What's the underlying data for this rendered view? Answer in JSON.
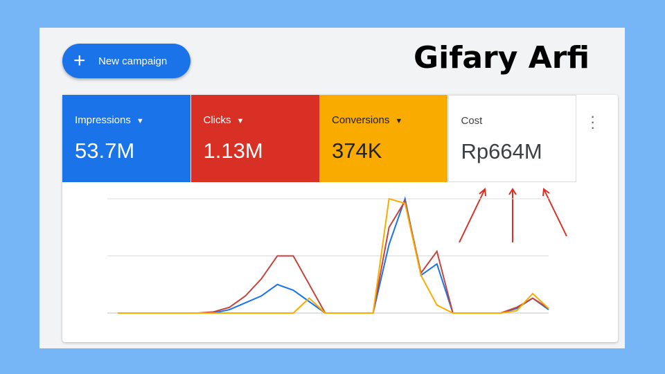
{
  "button": "New campaign",
  "title": "Gifary Arfi",
  "cards": [
    {
      "label": "Impressions",
      "value": "53.7M",
      "color": "#1a73e8",
      "dropdown": true
    },
    {
      "label": "Clicks",
      "value": "1.13M",
      "color": "#d93025",
      "dropdown": true
    },
    {
      "label": "Conversions",
      "value": "374K",
      "color": "#f9ab00",
      "dropdown": true
    },
    {
      "label": "Cost",
      "value": "Rp664M",
      "color": "#ffffff",
      "dropdown": false
    }
  ],
  "chart_data": {
    "type": "line",
    "categories": [
      null,
      null,
      null,
      null,
      null,
      null,
      null,
      null,
      null,
      null,
      null,
      null,
      null,
      null,
      null,
      null,
      null,
      null,
      null,
      null,
      null,
      null,
      null,
      null,
      null,
      null,
      null,
      null
    ],
    "ylim": [
      0,
      100
    ],
    "yticks": [
      0,
      50,
      100
    ],
    "grid": true,
    "series": [
      {
        "color": "#1a73e8",
        "values": [
          0,
          0,
          0,
          0,
          0,
          0,
          0,
          3,
          9,
          15,
          25,
          20,
          10,
          0,
          0,
          0,
          0,
          60,
          100,
          33,
          43,
          0,
          0,
          0,
          0,
          4,
          13,
          3
        ]
      },
      {
        "color": "#c5433a",
        "values": [
          0,
          0,
          0,
          0,
          0,
          0,
          1,
          5,
          15,
          30,
          50,
          50,
          25,
          0,
          0,
          0,
          0,
          75,
          98,
          35,
          54,
          0,
          0,
          0,
          0,
          5,
          13,
          4
        ]
      },
      {
        "color": "#f9ab00",
        "values": [
          0,
          0,
          0,
          0,
          0,
          0,
          0,
          0,
          0,
          0,
          0,
          0,
          13,
          0,
          0,
          0,
          0,
          100,
          96,
          33,
          7,
          0,
          0,
          0,
          0,
          2,
          17,
          4
        ]
      }
    ]
  }
}
